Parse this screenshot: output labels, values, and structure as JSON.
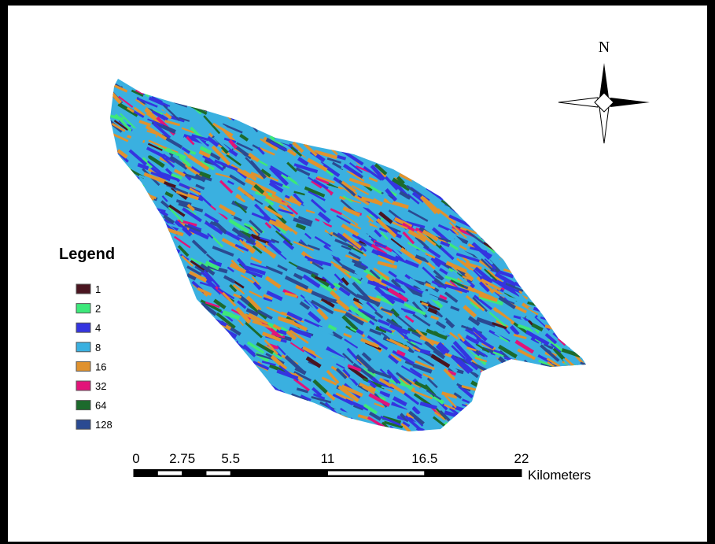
{
  "north_label": "N",
  "legend": {
    "title": "Legend",
    "items": [
      {
        "label": "1",
        "color": "#4a1520"
      },
      {
        "label": "2",
        "color": "#3de87a"
      },
      {
        "label": "4",
        "color": "#3434e0"
      },
      {
        "label": "8",
        "color": "#3ab0e0"
      },
      {
        "label": "16",
        "color": "#e0922e"
      },
      {
        "label": "32",
        "color": "#e21479"
      },
      {
        "label": "64",
        "color": "#1c6a2c"
      },
      {
        "label": "128",
        "color": "#2a4a92"
      }
    ]
  },
  "scale_bar": {
    "ticks": [
      0,
      2.75,
      5.5,
      11,
      16.5,
      22
    ],
    "units": "Kilometers"
  }
}
